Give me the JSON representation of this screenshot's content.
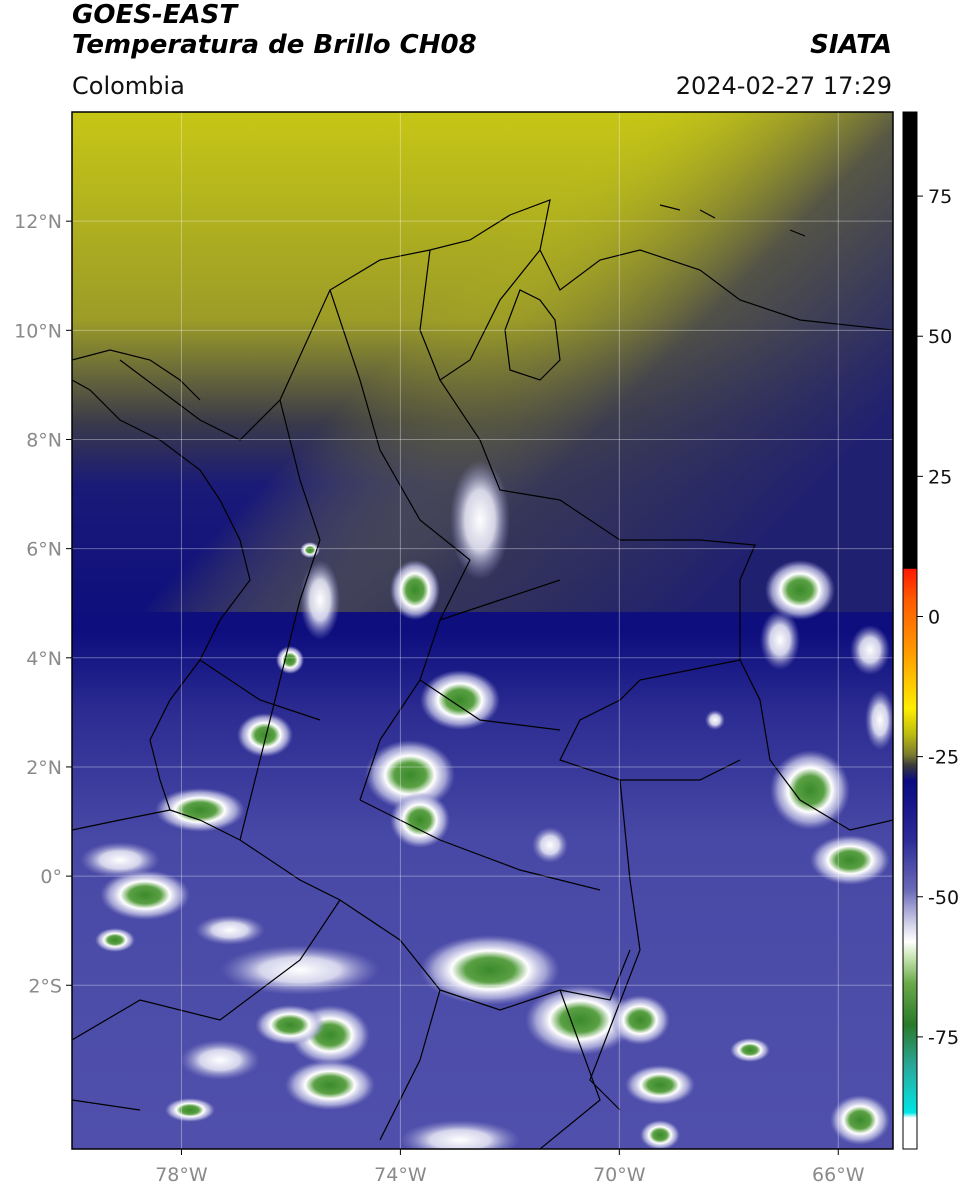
{
  "header": {
    "line1": "GOES-EAST",
    "line2": "Temperatura de Brillo CH08",
    "brand": "SIATA",
    "region": "Colombia",
    "timestamp": "2024-02-27 17:29"
  },
  "map": {
    "lon_range": [
      -80,
      -65
    ],
    "lat_range": [
      -5,
      14
    ],
    "lat_ticks": [
      {
        "value": 12,
        "label": "12°N"
      },
      {
        "value": 10,
        "label": "10°N"
      },
      {
        "value": 8,
        "label": "8°N"
      },
      {
        "value": 6,
        "label": "6°N"
      },
      {
        "value": 4,
        "label": "4°N"
      },
      {
        "value": 2,
        "label": "2°N"
      },
      {
        "value": 0,
        "label": "0°"
      },
      {
        "value": -2,
        "label": "2°S"
      }
    ],
    "lon_ticks": [
      {
        "value": -78,
        "label": "78°W"
      },
      {
        "value": -74,
        "label": "74°W"
      },
      {
        "value": -70,
        "label": "70°W"
      },
      {
        "value": -66,
        "label": "66°W"
      }
    ],
    "grid": true
  },
  "colorbar": {
    "range": [
      -95,
      90
    ],
    "ticks": [
      {
        "value": 75,
        "label": "75"
      },
      {
        "value": 50,
        "label": "50"
      },
      {
        "value": 25,
        "label": "25"
      },
      {
        "value": 0,
        "label": "0"
      },
      {
        "value": -25,
        "label": "-25"
      },
      {
        "value": -50,
        "label": "-50"
      },
      {
        "value": -75,
        "label": "-75"
      }
    ],
    "colors": {
      "black": "#000000",
      "red": "#ff1a00",
      "orange": "#ff9a00",
      "yellow": "#ffee00",
      "olive": "#9a9a1a",
      "dark_gray": "#2a2a2a",
      "navy": "#0a0a82",
      "blue_purple": "#4a4aa8",
      "light": "#d8d8ec",
      "white": "#ffffff",
      "light_green": "#c8e6b4",
      "green": "#3a8a2a",
      "teal": "#2aa89a",
      "cyan": "#00e6e6"
    }
  }
}
